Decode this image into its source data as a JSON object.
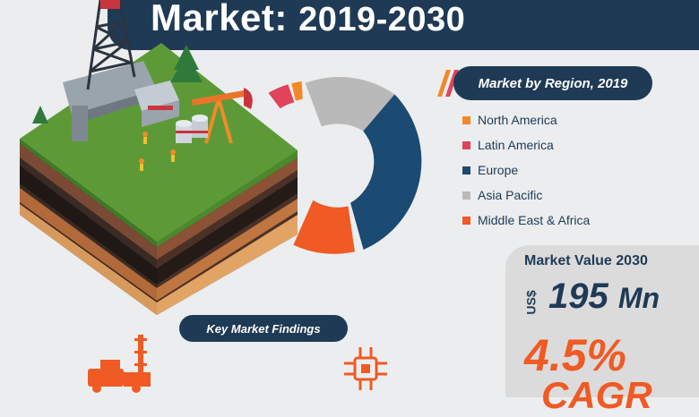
{
  "header": {
    "title_main": "Market:",
    "title_years": "2019-2030"
  },
  "region_chart": {
    "heading": "Market by Region, 2019",
    "legend": [
      {
        "label": "North America",
        "color": "#f3872a"
      },
      {
        "label": "Latin America",
        "color": "#e0435b"
      },
      {
        "label": "Europe",
        "color": "#1b4a73"
      },
      {
        "label": "Asia Pacific",
        "color": "#b9b9b9"
      },
      {
        "label": "Middle East & Africa",
        "color": "#f05a24"
      }
    ]
  },
  "market_value": {
    "label": "Market Value 2030",
    "currency": "US$",
    "amount": "195",
    "unit": "Mn",
    "cagr_value": "4.5%",
    "cagr_label": "CAGR"
  },
  "findings": {
    "label": "Key Market Findings"
  },
  "icons": {
    "truck": "truck-rig-icon",
    "chip": "microchip-icon"
  },
  "colors": {
    "navy": "#1f3a55",
    "orange": "#f05a24",
    "background": "#ebedef"
  }
}
